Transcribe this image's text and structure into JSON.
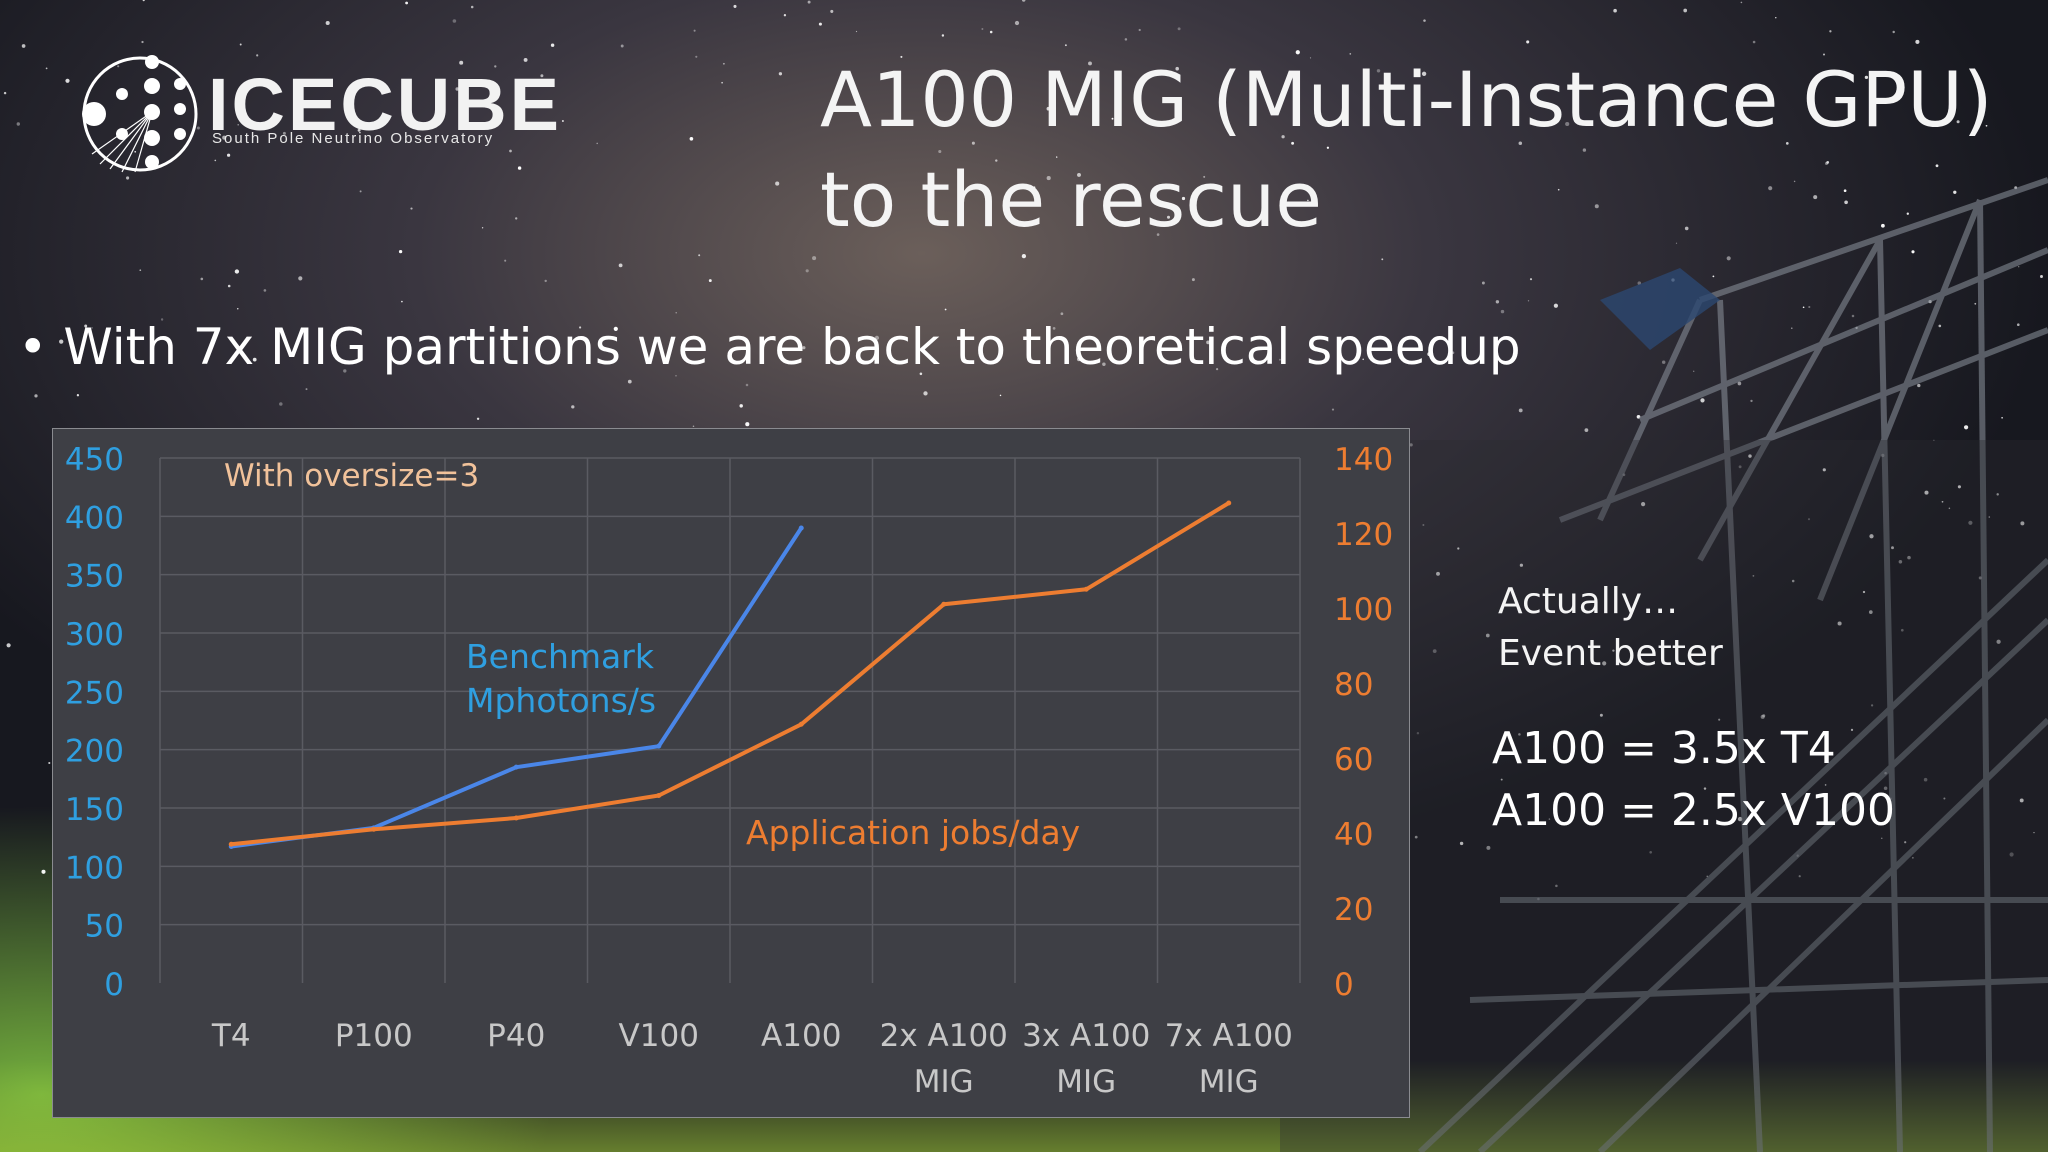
{
  "logo": {
    "name": "ICECUBE",
    "subtitle": "South Pole Neutrino Observatory"
  },
  "slide": {
    "title_line1": "A100 MIG (Multi-Instance GPU)",
    "title_line2": "to the rescue",
    "bullet": "• With 7x MIG partitions we are back to theoretical speedup",
    "note_line1": "Actually…",
    "note_line2": "Event better",
    "eq1": "A100 = 3.5x T4",
    "eq2": "A100 = 2.5x V100"
  },
  "colors": {
    "benchmark": "#4a86e8",
    "jobs": "#ed7d31",
    "left_axis": "#2f9fe0",
    "right_axis": "#ed7d31",
    "chart_bg": "#3e3f45",
    "grid": "#5a5b62",
    "tick": "#c8c8c8"
  },
  "chart_data": {
    "type": "line",
    "categories": [
      "T4",
      "P100",
      "P40",
      "V100",
      "A100",
      "2x A100 MIG",
      "3x A100 MIG",
      "7x A100 MIG"
    ],
    "category_lines": [
      [
        "T4"
      ],
      [
        "P100"
      ],
      [
        "P40"
      ],
      [
        "V100"
      ],
      [
        "A100"
      ],
      [
        "2x A100",
        "MIG"
      ],
      [
        "3x A100",
        "MIG"
      ],
      [
        "7x A100",
        "MIG"
      ]
    ],
    "annotation": "With oversize=3",
    "y_left": {
      "ylim": [
        0,
        450
      ],
      "ticks": [
        0,
        50,
        100,
        150,
        200,
        250,
        300,
        350,
        400,
        450
      ]
    },
    "y_right": {
      "ylim": [
        0,
        140
      ],
      "ticks": [
        0,
        20,
        40,
        60,
        80,
        100,
        120,
        140
      ]
    },
    "series": [
      {
        "name": "Benchmark Mphotons/s",
        "label_lines": [
          "Benchmark",
          "Mphotons/s"
        ],
        "axis": "left",
        "values": [
          117,
          133,
          185,
          203,
          390,
          null,
          null,
          null
        ]
      },
      {
        "name": "Application jobs/day",
        "label_lines": [
          "Application jobs/day"
        ],
        "axis": "right",
        "values": [
          37,
          41,
          44,
          50,
          69,
          101,
          105,
          128
        ]
      }
    ]
  }
}
